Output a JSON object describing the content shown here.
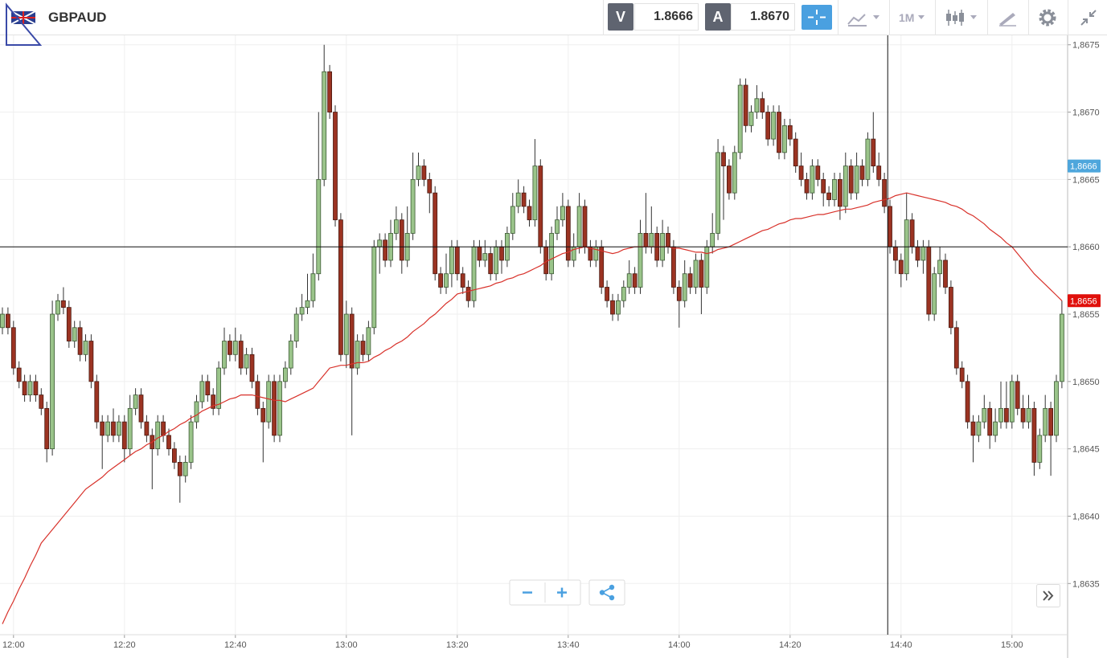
{
  "header": {
    "symbol": "GBPAUD",
    "bid_label": "V",
    "bid": "1.8666",
    "ask_label": "A",
    "ask": "1.8670",
    "timeframe": "1M"
  },
  "chart_data": {
    "type": "candlestick",
    "categories": [
      null,
      null,
      "12:00",
      null,
      null,
      null,
      null,
      null,
      null,
      null,
      null,
      null,
      null,
      null,
      null,
      null,
      null,
      null,
      null,
      null,
      null,
      null,
      "12:20",
      null,
      null,
      null,
      null,
      null,
      null,
      null,
      null,
      null,
      null,
      null,
      null,
      null,
      null,
      null,
      null,
      null,
      null,
      null,
      "12:40",
      null,
      null,
      null,
      null,
      null,
      null,
      null,
      null,
      null,
      null,
      null,
      null,
      null,
      null,
      null,
      null,
      null,
      null,
      null,
      "13:00",
      null,
      null,
      null,
      null,
      null,
      null,
      null,
      null,
      null,
      null,
      null,
      null,
      null,
      null,
      null,
      null,
      null,
      null,
      null,
      "13:20",
      null,
      null,
      null,
      null,
      null,
      null,
      null,
      null,
      null,
      null,
      null,
      null,
      null,
      null,
      null,
      null,
      null,
      null,
      null,
      "13:40",
      null,
      null,
      null,
      null,
      null,
      null,
      null,
      null,
      null,
      null,
      null,
      null,
      null,
      null,
      null,
      null,
      null,
      null,
      null,
      "14:00",
      null,
      null,
      null,
      null,
      null,
      null,
      null,
      null,
      null,
      null,
      null,
      null,
      null,
      null,
      null,
      null,
      null,
      null,
      null,
      "14:20",
      null,
      null,
      null,
      null,
      null,
      null,
      null,
      null,
      null,
      null,
      null,
      null,
      null,
      null,
      null,
      null,
      null,
      null,
      null,
      "14:40",
      null,
      null,
      null,
      null,
      null,
      null,
      null,
      null,
      null,
      null,
      null,
      null,
      null,
      null,
      null,
      null,
      null,
      null,
      null,
      "15:00",
      null,
      null,
      null,
      null,
      null,
      null,
      null,
      null,
      null
    ],
    "open": [
      1.8654,
      1.8655,
      1.8654,
      1.8651,
      1.865,
      1.8649,
      1.865,
      1.8649,
      1.8648,
      1.8645,
      1.8655,
      1.8656,
      1.86555,
      1.8653,
      1.8654,
      1.8652,
      1.8653,
      1.865,
      1.8647,
      1.8646,
      1.8647,
      1.8646,
      1.8647,
      1.8645,
      1.8648,
      1.8649,
      1.8647,
      1.8646,
      1.8645,
      1.8647,
      1.8646,
      1.8645,
      1.8644,
      1.8643,
      1.8644,
      1.8647,
      1.86485,
      1.865,
      1.8649,
      1.8648,
      1.8651,
      1.8653,
      1.8652,
      1.8653,
      1.8651,
      1.8652,
      1.865,
      1.8648,
      1.8647,
      1.865,
      1.8646,
      1.865,
      1.8651,
      1.8653,
      1.8655,
      1.86555,
      1.8656,
      1.8658,
      1.8665,
      1.8673,
      1.867,
      1.8662,
      1.8652,
      1.8655,
      1.8651,
      1.8653,
      1.8652,
      1.8654,
      1.866,
      1.86605,
      1.8659,
      1.8661,
      1.8662,
      1.8659,
      1.8661,
      1.8665,
      1.8666,
      1.8665,
      1.8664,
      1.8658,
      1.8657,
      1.8658,
      1.866,
      1.8658,
      1.8657,
      1.8656,
      1.866,
      1.8659,
      1.86595,
      1.8658,
      1.866,
      1.8659,
      1.8661,
      1.8663,
      1.8664,
      1.8663,
      1.8662,
      1.8666,
      1.866,
      1.8658,
      1.8661,
      1.8662,
      1.8663,
      1.8659,
      1.866,
      1.8663,
      1.866,
      1.8659,
      1.866,
      1.8657,
      1.8656,
      1.8655,
      1.8656,
      1.8657,
      1.8658,
      1.8657,
      1.8661,
      1.866,
      1.8661,
      1.8659,
      1.8661,
      1.866,
      1.8657,
      1.8656,
      1.8658,
      1.8657,
      1.8659,
      1.8657,
      1.866,
      1.8661,
      1.8667,
      1.8666,
      1.8664,
      1.8667,
      1.8672,
      1.8669,
      1.867,
      1.8671,
      1.867,
      1.8668,
      1.867,
      1.8667,
      1.8669,
      1.8668,
      1.8666,
      1.8665,
      1.8664,
      1.8666,
      1.8665,
      1.8664,
      1.86635,
      1.8665,
      1.8663,
      1.8666,
      1.8664,
      1.8666,
      1.8665,
      1.8668,
      1.8666,
      1.8665,
      1.8663,
      1.866,
      1.8659,
      1.8658,
      1.8662,
      1.866,
      1.8659,
      1.866,
      1.8655,
      1.8658,
      1.8659,
      1.8657,
      1.8654,
      1.8651,
      1.865,
      1.8647,
      1.8646,
      1.8647,
      1.8648,
      1.8646,
      1.8647,
      1.8648,
      1.8647,
      1.865,
      1.8648,
      1.8647,
      1.8648,
      1.8644,
      1.8646,
      1.8648,
      1.8646,
      1.865
    ],
    "high": [
      1.86555,
      1.86555,
      1.86545,
      1.86515,
      1.86505,
      1.86505,
      1.86505,
      1.86495,
      1.86485,
      1.8656,
      1.86565,
      1.8657,
      1.8656,
      1.86545,
      1.86545,
      1.86535,
      1.86535,
      1.86505,
      1.86475,
      1.86475,
      1.8648,
      1.86475,
      1.86475,
      1.8649,
      1.86495,
      1.86495,
      1.86475,
      1.86465,
      1.86475,
      1.86475,
      1.86465,
      1.86455,
      1.86445,
      1.86445,
      1.86475,
      1.8649,
      1.86505,
      1.86505,
      1.86495,
      1.86515,
      1.8654,
      1.86535,
      1.8654,
      1.86535,
      1.86525,
      1.86525,
      1.86505,
      1.86485,
      1.86505,
      1.86505,
      1.86505,
      1.86515,
      1.86535,
      1.86555,
      1.86565,
      1.8658,
      1.86595,
      1.867,
      1.8675,
      1.86735,
      1.86705,
      1.86625,
      1.8656,
      1.86555,
      1.86535,
      1.86535,
      1.86545,
      1.86605,
      1.8661,
      1.8661,
      1.8662,
      1.8663,
      1.86625,
      1.8663,
      1.8667,
      1.8667,
      1.86665,
      1.86655,
      1.86645,
      1.86585,
      1.86595,
      1.86605,
      1.86605,
      1.86585,
      1.86575,
      1.86605,
      1.86605,
      1.86605,
      1.866,
      1.86605,
      1.86605,
      1.86615,
      1.8664,
      1.8665,
      1.86645,
      1.86635,
      1.8668,
      1.86665,
      1.86605,
      1.86615,
      1.8663,
      1.8664,
      1.86635,
      1.8661,
      1.8664,
      1.86635,
      1.86605,
      1.86605,
      1.86605,
      1.86575,
      1.86565,
      1.86565,
      1.86575,
      1.8659,
      1.86585,
      1.8662,
      1.8664,
      1.8663,
      1.86615,
      1.8662,
      1.86615,
      1.86605,
      1.86575,
      1.8659,
      1.86585,
      1.86595,
      1.86595,
      1.86605,
      1.86625,
      1.8668,
      1.86675,
      1.86665,
      1.86675,
      1.86725,
      1.86725,
      1.86705,
      1.8672,
      1.86715,
      1.86705,
      1.86705,
      1.86705,
      1.86695,
      1.86695,
      1.86685,
      1.8667,
      1.86655,
      1.86665,
      1.86665,
      1.86655,
      1.86645,
      1.86655,
      1.86655,
      1.8667,
      1.86665,
      1.8667,
      1.86665,
      1.86685,
      1.867,
      1.8667,
      1.86655,
      1.86635,
      1.86605,
      1.86595,
      1.8664,
      1.86625,
      1.86605,
      1.86605,
      1.86605,
      1.86585,
      1.866,
      1.86595,
      1.86575,
      1.86545,
      1.86515,
      1.86505,
      1.86475,
      1.86475,
      1.8649,
      1.86485,
      1.8648,
      1.865,
      1.865,
      1.86505,
      1.86505,
      1.8649,
      1.8649,
      1.86485,
      1.86465,
      1.8649,
      1.86485,
      1.86505,
      1.8656
    ],
    "low": [
      1.86535,
      1.86535,
      1.86505,
      1.86495,
      1.86485,
      1.86485,
      1.86485,
      1.86475,
      1.8644,
      1.86445,
      1.86545,
      1.8655,
      1.86525,
      1.86525,
      1.86515,
      1.86515,
      1.86495,
      1.86465,
      1.86435,
      1.86455,
      1.86455,
      1.86455,
      1.8644,
      1.86445,
      1.86475,
      1.86465,
      1.86455,
      1.8642,
      1.86445,
      1.86455,
      1.86445,
      1.86435,
      1.8641,
      1.86425,
      1.86435,
      1.86465,
      1.8648,
      1.86485,
      1.86475,
      1.86475,
      1.86505,
      1.86515,
      1.86515,
      1.86505,
      1.86505,
      1.86495,
      1.86475,
      1.8644,
      1.86465,
      1.86455,
      1.86455,
      1.86495,
      1.86505,
      1.86525,
      1.86545,
      1.8655,
      1.86555,
      1.86575,
      1.86645,
      1.86695,
      1.86615,
      1.86515,
      1.8651,
      1.8646,
      1.86505,
      1.86515,
      1.86515,
      1.86535,
      1.8658,
      1.86585,
      1.86585,
      1.86605,
      1.8658,
      1.86585,
      1.86605,
      1.86645,
      1.86645,
      1.86625,
      1.86575,
      1.86565,
      1.86565,
      1.8657,
      1.86575,
      1.86565,
      1.86555,
      1.86555,
      1.86585,
      1.86585,
      1.86575,
      1.86575,
      1.8658,
      1.86585,
      1.86605,
      1.86625,
      1.86625,
      1.86615,
      1.86615,
      1.86595,
      1.86575,
      1.86575,
      1.86605,
      1.86615,
      1.86585,
      1.86585,
      1.86595,
      1.86595,
      1.86585,
      1.86585,
      1.86565,
      1.86555,
      1.86545,
      1.86545,
      1.86555,
      1.86565,
      1.86565,
      1.86565,
      1.86595,
      1.86595,
      1.86585,
      1.86585,
      1.86595,
      1.86565,
      1.8654,
      1.86555,
      1.86565,
      1.86565,
      1.8655,
      1.86565,
      1.86595,
      1.86605,
      1.8662,
      1.86635,
      1.86635,
      1.86665,
      1.86685,
      1.86685,
      1.86695,
      1.86695,
      1.86675,
      1.86675,
      1.86665,
      1.86665,
      1.86675,
      1.86655,
      1.86645,
      1.86635,
      1.86635,
      1.86645,
      1.8663,
      1.8663,
      1.8663,
      1.8662,
      1.86625,
      1.86635,
      1.86635,
      1.86645,
      1.86645,
      1.86655,
      1.86645,
      1.86625,
      1.86595,
      1.8658,
      1.8657,
      1.86575,
      1.86595,
      1.86585,
      1.8658,
      1.86545,
      1.86545,
      1.8657,
      1.86565,
      1.86535,
      1.86505,
      1.86495,
      1.86465,
      1.8644,
      1.86455,
      1.86465,
      1.8645,
      1.86455,
      1.86465,
      1.86465,
      1.86465,
      1.86475,
      1.86465,
      1.86465,
      1.8643,
      1.86435,
      1.86455,
      1.8643,
      1.86455,
      1.86495
    ],
    "close": [
      1.8655,
      1.8654,
      1.8651,
      1.865,
      1.8649,
      1.865,
      1.8649,
      1.8648,
      1.8645,
      1.8655,
      1.8656,
      1.86555,
      1.8653,
      1.8654,
      1.8652,
      1.8653,
      1.865,
      1.8647,
      1.8646,
      1.8647,
      1.8646,
      1.8647,
      1.8645,
      1.8648,
      1.8649,
      1.8647,
      1.8646,
      1.8645,
      1.8647,
      1.8646,
      1.8645,
      1.8644,
      1.8643,
      1.8644,
      1.8647,
      1.86485,
      1.865,
      1.8649,
      1.8648,
      1.8651,
      1.8653,
      1.8652,
      1.8653,
      1.8651,
      1.8652,
      1.865,
      1.8648,
      1.8647,
      1.865,
      1.8646,
      1.865,
      1.8651,
      1.8653,
      1.8655,
      1.86555,
      1.8656,
      1.8658,
      1.8665,
      1.8673,
      1.867,
      1.8662,
      1.8652,
      1.8655,
      1.8651,
      1.8653,
      1.8652,
      1.8654,
      1.866,
      1.86605,
      1.8659,
      1.8661,
      1.8662,
      1.8659,
      1.8661,
      1.8665,
      1.8666,
      1.8665,
      1.8664,
      1.8658,
      1.8657,
      1.8658,
      1.866,
      1.8658,
      1.8657,
      1.8656,
      1.866,
      1.8659,
      1.86595,
      1.8658,
      1.866,
      1.8659,
      1.8661,
      1.8663,
      1.8664,
      1.8663,
      1.8662,
      1.8666,
      1.866,
      1.8658,
      1.8661,
      1.8662,
      1.8663,
      1.8659,
      1.866,
      1.8663,
      1.866,
      1.8659,
      1.866,
      1.8657,
      1.8656,
      1.8655,
      1.8656,
      1.8657,
      1.8658,
      1.8657,
      1.8661,
      1.866,
      1.8661,
      1.8659,
      1.8661,
      1.866,
      1.8657,
      1.8656,
      1.8658,
      1.8657,
      1.8659,
      1.8657,
      1.866,
      1.8661,
      1.8667,
      1.8666,
      1.8664,
      1.8667,
      1.8672,
      1.8669,
      1.867,
      1.8671,
      1.867,
      1.8668,
      1.867,
      1.8667,
      1.8669,
      1.8668,
      1.8666,
      1.8665,
      1.8664,
      1.8666,
      1.8665,
      1.8664,
      1.86635,
      1.8665,
      1.8663,
      1.8666,
      1.8664,
      1.8666,
      1.8665,
      1.8668,
      1.8666,
      1.8665,
      1.8663,
      1.866,
      1.8659,
      1.8658,
      1.8662,
      1.866,
      1.8659,
      1.866,
      1.8655,
      1.8658,
      1.8659,
      1.8657,
      1.8654,
      1.8651,
      1.865,
      1.8647,
      1.8646,
      1.8647,
      1.8648,
      1.8646,
      1.8647,
      1.8648,
      1.8647,
      1.865,
      1.8648,
      1.8647,
      1.8648,
      1.8644,
      1.8646,
      1.8648,
      1.8646,
      1.865,
      1.8655
    ],
    "up_color": "#9ac48a",
    "down_color": "#9b3322",
    "ma": {
      "color": "#d8312a",
      "values": [
        1.8632,
        1.86329,
        1.86337,
        1.86346,
        1.86354,
        1.86363,
        1.86371,
        1.8638,
        1.86385,
        1.8639,
        1.86395,
        1.864,
        1.86405,
        1.8641,
        1.86415,
        1.8642,
        1.86423,
        1.86426,
        1.86429,
        1.86433,
        1.86436,
        1.86439,
        1.86442,
        1.86445,
        1.86448,
        1.8645,
        1.86453,
        1.86455,
        1.86458,
        1.8646,
        1.86463,
        1.86465,
        1.86468,
        1.8647,
        1.86473,
        1.86475,
        1.86478,
        1.8648,
        1.86482,
        1.86483,
        1.86485,
        1.86487,
        1.86488,
        1.8649,
        1.8649,
        1.8649,
        1.86489,
        1.86488,
        1.86487,
        1.86486,
        1.86486,
        1.86485,
        1.86487,
        1.86489,
        1.86491,
        1.86493,
        1.86495,
        1.865,
        1.86505,
        1.8651,
        1.86511,
        1.86512,
        1.86512,
        1.86513,
        1.86514,
        1.86514,
        1.86515,
        1.86518,
        1.8652,
        1.86523,
        1.86525,
        1.86528,
        1.8653,
        1.86533,
        1.86537,
        1.8654,
        1.86543,
        1.86547,
        1.8655,
        1.86554,
        1.86558,
        1.86561,
        1.86565,
        1.86566,
        1.86567,
        1.86568,
        1.86569,
        1.8657,
        1.86571,
        1.86573,
        1.86574,
        1.86576,
        1.86577,
        1.86579,
        1.8658,
        1.86582,
        1.86584,
        1.86586,
        1.86589,
        1.86591,
        1.86593,
        1.86595,
        1.86596,
        1.86598,
        1.86599,
        1.866,
        1.86599,
        1.86598,
        1.86597,
        1.86596,
        1.86595,
        1.86596,
        1.86598,
        1.86599,
        1.866,
        1.866,
        1.866,
        1.866,
        1.866,
        1.866,
        1.866,
        1.86599,
        1.86599,
        1.86598,
        1.86597,
        1.86596,
        1.86596,
        1.86595,
        1.86596,
        1.86598,
        1.86599,
        1.866,
        1.86602,
        1.86604,
        1.86606,
        1.86608,
        1.8661,
        1.86612,
        1.86613,
        1.86615,
        1.86617,
        1.86618,
        1.8662,
        1.86621,
        1.86621,
        1.86622,
        1.86623,
        1.86624,
        1.86624,
        1.86625,
        1.86626,
        1.86627,
        1.86628,
        1.86628,
        1.86629,
        1.8663,
        1.86631,
        1.86633,
        1.86634,
        1.86635,
        1.86636,
        1.86638,
        1.86639,
        1.8664,
        1.86639,
        1.86638,
        1.86637,
        1.86636,
        1.86635,
        1.86634,
        1.86633,
        1.86631,
        1.8663,
        1.86628,
        1.86625,
        1.86623,
        1.8662,
        1.86617,
        1.86613,
        1.8661,
        1.86607,
        1.86603,
        1.866,
        1.86595,
        1.8659,
        1.86585,
        1.8658,
        1.86576,
        1.86572,
        1.86568,
        1.86564,
        1.8656
      ]
    },
    "ylim": [
      1.86312,
      1.86757
    ],
    "yticks": [
      {
        "value": 1.8635,
        "label": "1,8635"
      },
      {
        "value": 1.864,
        "label": "1,8640"
      },
      {
        "value": 1.8645,
        "label": "1,8645"
      },
      {
        "value": 1.865,
        "label": "1,8650"
      },
      {
        "value": 1.8655,
        "label": "1,8655"
      },
      {
        "value": 1.866,
        "label": "1,8660"
      },
      {
        "value": 1.8665,
        "label": "1,8665"
      },
      {
        "value": 1.867,
        "label": "1,8670"
      },
      {
        "value": 1.8675,
        "label": "1,8675"
      }
    ],
    "grid": true,
    "crosshair_price": 1.866,
    "crosshair_index": 159.6,
    "price_labels": [
      {
        "value": 1.8666,
        "label": "1,8666",
        "color": "#4ea6dc"
      },
      {
        "value": 1.8656,
        "label": "1,8656",
        "color": "#e0100b"
      }
    ]
  }
}
